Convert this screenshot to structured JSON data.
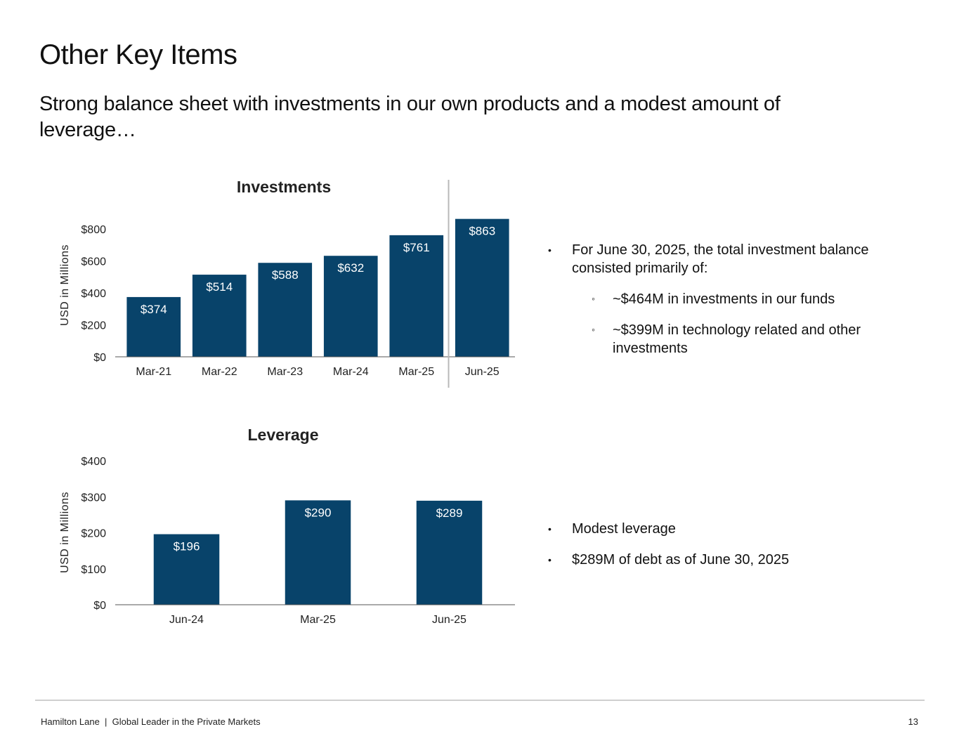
{
  "page": {
    "title": "Other Key Items",
    "subtitle": "Strong balance sheet with investments in our own products and a modest amount of leverage…"
  },
  "chart_data": [
    {
      "type": "bar",
      "title": "Investments",
      "ylabel": "USD in Millions",
      "categories": [
        "Mar-21",
        "Mar-22",
        "Mar-23",
        "Mar-24",
        "Mar-25",
        "Jun-25"
      ],
      "values": [
        374,
        514,
        588,
        632,
        761,
        863
      ],
      "data_labels": [
        "$374",
        "$514",
        "$588",
        "$632",
        "$761",
        "$863"
      ],
      "ylim": [
        0,
        800
      ],
      "yticks": [
        0,
        200,
        400,
        600,
        800
      ],
      "ytick_labels": [
        "$0",
        "$200",
        "$400",
        "$600",
        "$800"
      ],
      "bar_color": "#08436a",
      "grid": false,
      "divider_before_last": true
    },
    {
      "type": "bar",
      "title": "Leverage",
      "ylabel": "USD in Millions",
      "categories": [
        "Jun-24",
        "Mar-25",
        "Jun-25"
      ],
      "values": [
        196,
        290,
        289
      ],
      "data_labels": [
        "$196",
        "$290",
        "$289"
      ],
      "ylim": [
        0,
        400
      ],
      "yticks": [
        0,
        100,
        200,
        300,
        400
      ],
      "ytick_labels": [
        "$0",
        "$100",
        "$200",
        "$300",
        "$400"
      ],
      "bar_color": "#08436a",
      "grid": false
    }
  ],
  "investments_notes": {
    "bullet": "For June 30, 2025, the total investment balance consisted primarily of:",
    "sub_1": "~$464M in investments in our funds",
    "sub_2": "~$399M in technology related and other investments"
  },
  "leverage_notes": {
    "bullet_1": "Modest leverage",
    "bullet_2": "$289M of debt as of June 30, 2025"
  },
  "footer": {
    "text": "Hamilton Lane  |  Global Leader in the Private Markets",
    "page_number": "13"
  }
}
